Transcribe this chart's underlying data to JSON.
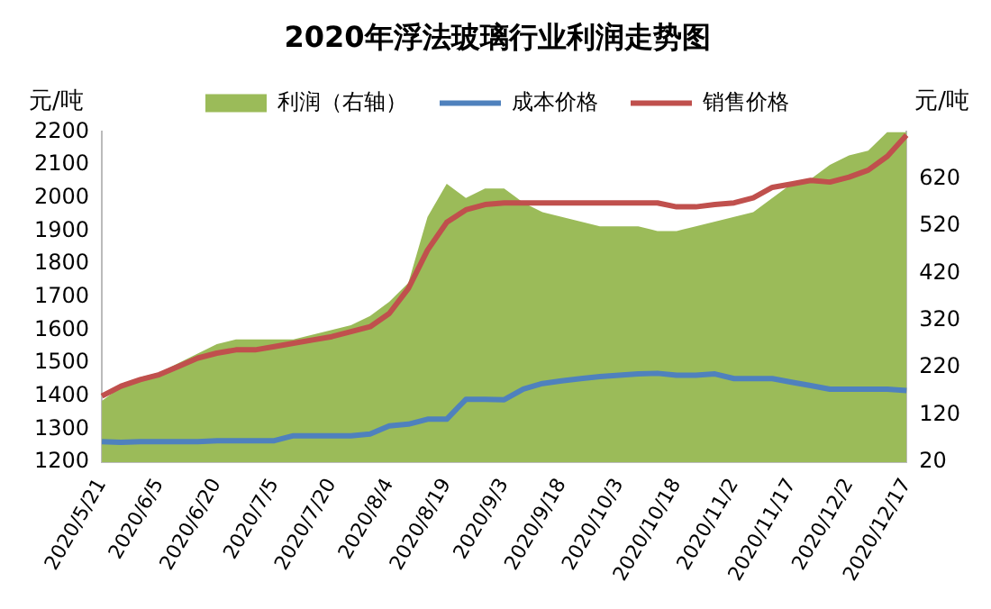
{
  "chart_data": {
    "type": "line",
    "title": "2020年浮法玻璃行业利润走势图",
    "ylabel": "元/吨",
    "y2label": "元/吨",
    "categories": [
      "2020/5/21",
      null,
      null,
      "2020/6/5",
      null,
      null,
      "2020/6/20",
      null,
      null,
      "2020/7/5",
      null,
      null,
      "2020/7/20",
      null,
      null,
      "2020/8/4",
      null,
      null,
      "2020/8/19",
      null,
      null,
      "2020/9/3",
      null,
      null,
      "2020/9/18",
      null,
      null,
      "2020/10/3",
      null,
      null,
      "2020/10/18",
      null,
      null,
      "2020/11/2",
      null,
      null,
      "2020/11/17",
      null,
      null,
      "2020/12/2",
      null,
      null,
      "2020/12/17"
    ],
    "series": [
      {
        "name": "利润（右轴）",
        "type": "area",
        "axis": "y2",
        "color": "#9bbb59",
        "values": [
          150,
          180,
          200,
          210,
          230,
          250,
          270,
          280,
          280,
          280,
          280,
          290,
          300,
          310,
          330,
          360,
          400,
          540,
          610,
          580,
          600,
          600,
          570,
          550,
          540,
          530,
          520,
          520,
          520,
          510,
          510,
          520,
          530,
          540,
          550,
          580,
          610,
          620,
          650,
          670,
          680,
          720,
          720
        ]
      },
      {
        "name": "成本价格",
        "type": "line",
        "color": "#4f81bd",
        "values": [
          1262,
          1260,
          1262,
          1262,
          1262,
          1262,
          1265,
          1265,
          1265,
          1265,
          1280,
          1280,
          1280,
          1280,
          1285,
          1310,
          1315,
          1330,
          1330,
          1390,
          1390,
          1389,
          1421,
          1438,
          1446,
          1453,
          1459,
          1463,
          1467,
          1469,
          1463,
          1463,
          1467,
          1453,
          1453,
          1453,
          1442,
          1432,
          1421,
          1421,
          1421,
          1421,
          1417
        ]
      },
      {
        "name": "销售价格",
        "type": "line",
        "color": "#c0504d",
        "values": [
          1400,
          1430,
          1450,
          1465,
          1490,
          1515,
          1530,
          1540,
          1540,
          1550,
          1560,
          1570,
          1580,
          1595,
          1610,
          1650,
          1726,
          1842,
          1926,
          1964,
          1980,
          1985,
          1985,
          1985,
          1985,
          1985,
          1985,
          1985,
          1985,
          1985,
          1973,
          1973,
          1980,
          1985,
          2000,
          2032,
          2042,
          2053,
          2048,
          2063,
          2084,
          2126,
          2190
        ]
      }
    ],
    "ylim": [
      1200,
      2200
    ],
    "yticks": [
      1200,
      1300,
      1400,
      1500,
      1600,
      1700,
      1800,
      1900,
      2000,
      2100,
      2200
    ],
    "y2lim": [
      20,
      720
    ],
    "y2ticks": [
      20,
      120,
      220,
      320,
      420,
      520,
      620
    ],
    "legend": "top",
    "grid": false,
    "marker": "none",
    "line_style": "solid"
  }
}
